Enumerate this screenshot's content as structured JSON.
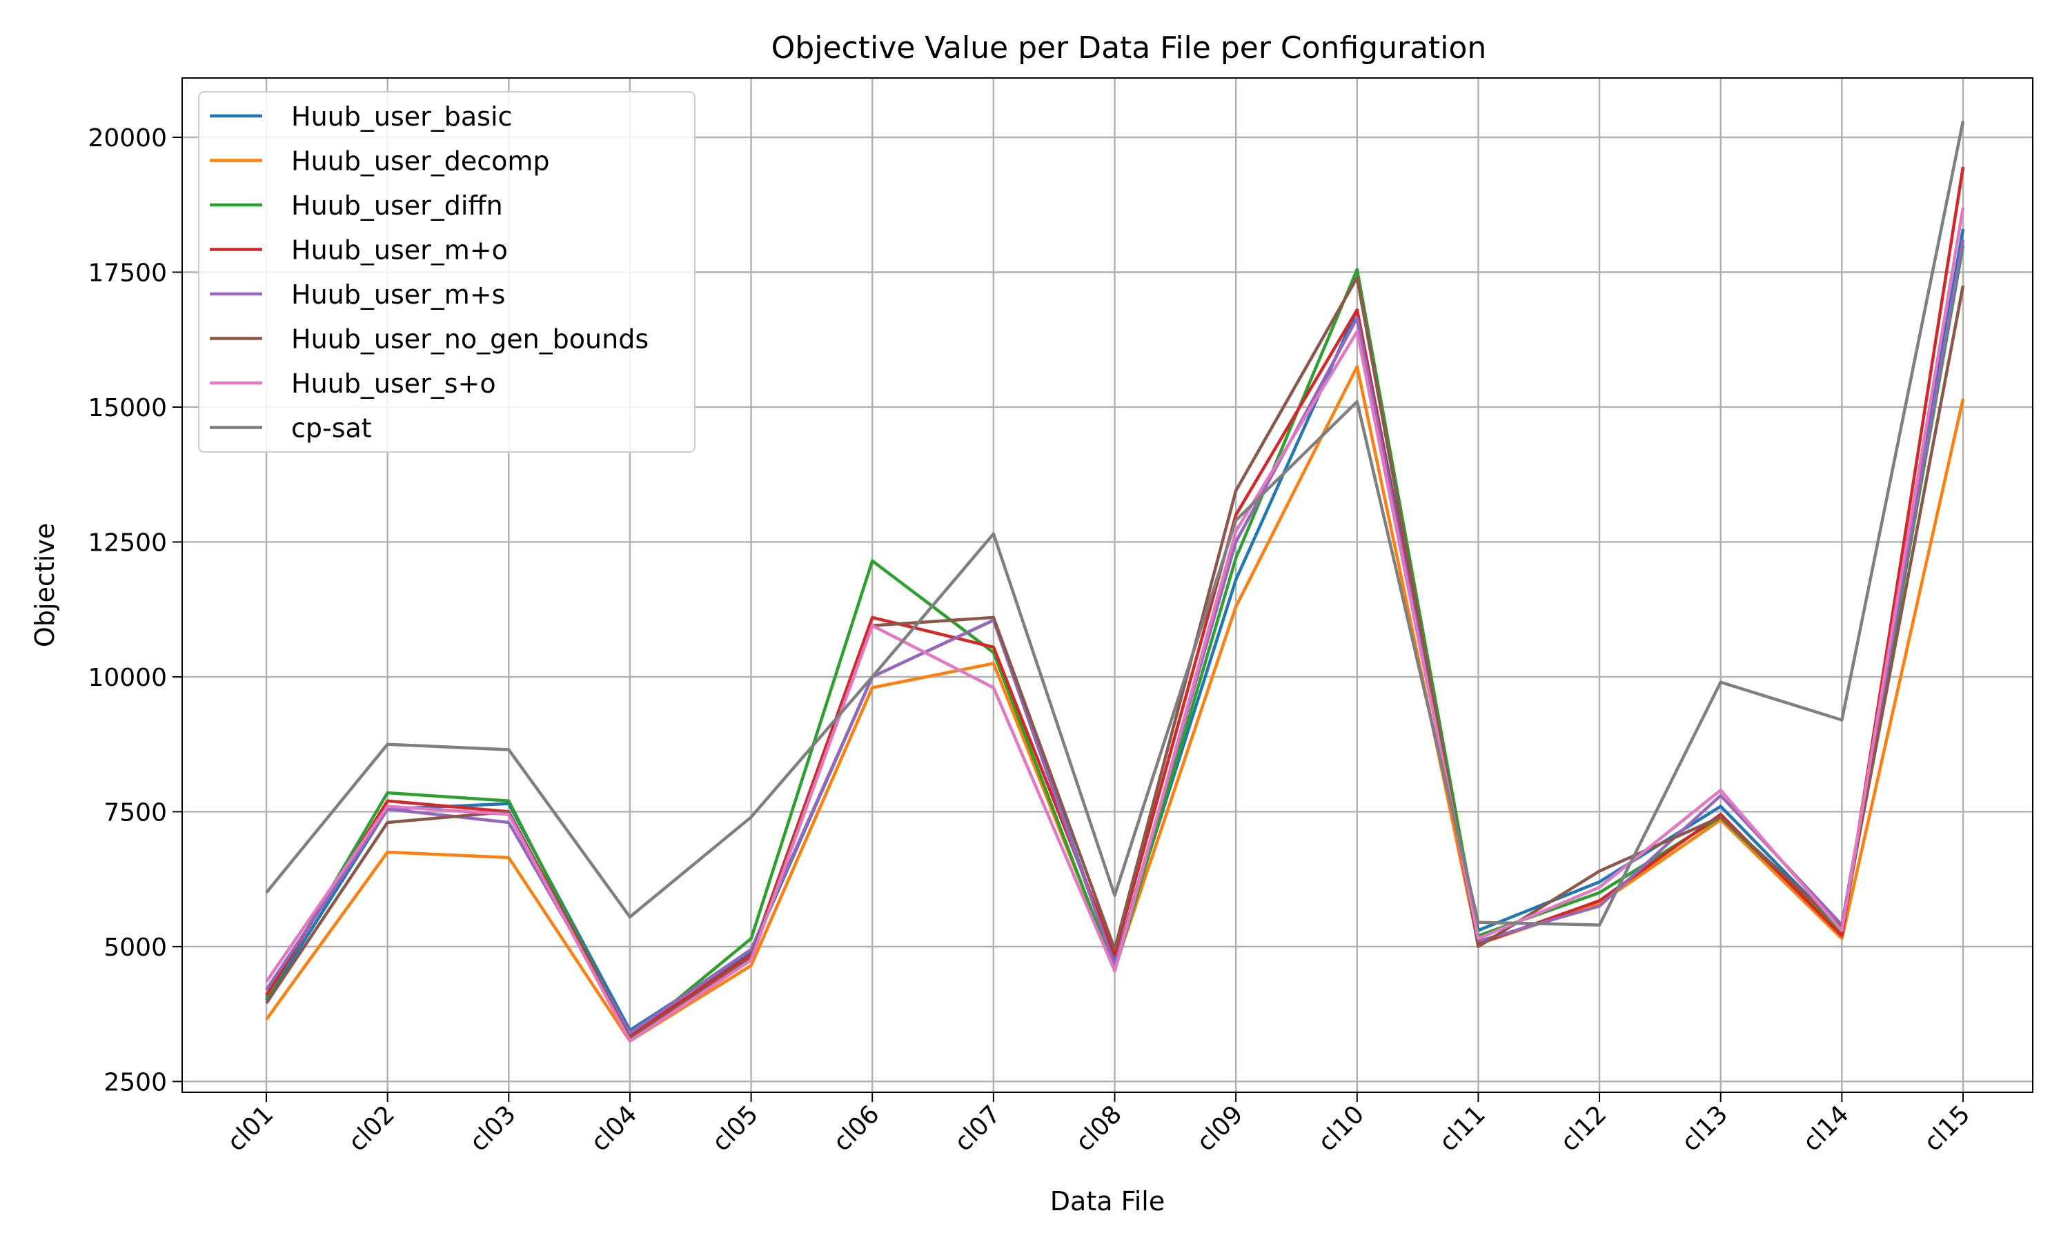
{
  "chart_data": {
    "type": "line",
    "title": "Objective Value per Data File per Configuration",
    "xlabel": "Data File",
    "ylabel": "Objective",
    "categories": [
      "cl01",
      "cl02",
      "cl03",
      "cl04",
      "cl05",
      "cl06",
      "cl07",
      "cl08",
      "cl09",
      "cl10",
      "cl11",
      "cl12",
      "cl13",
      "cl14",
      "cl15"
    ],
    "ylim": [
      2300,
      21100
    ],
    "yticks": [
      2500,
      5000,
      7500,
      10000,
      12500,
      15000,
      17500,
      20000
    ],
    "grid": true,
    "legend_position": "top-left",
    "series": [
      {
        "name": "Huub_user_basic",
        "color": "#1f77b4",
        "values": [
          4000,
          7550,
          7650,
          3450,
          4900,
          10000,
          11050,
          4700,
          11800,
          16800,
          5300,
          6200,
          7600,
          5300,
          18300
        ]
      },
      {
        "name": "Huub_user_decomp",
        "color": "#ff7f0e",
        "values": [
          3650,
          6750,
          6650,
          3250,
          4650,
          9800,
          10250,
          4600,
          11300,
          15750,
          5050,
          5800,
          7350,
          5150,
          15150
        ]
      },
      {
        "name": "Huub_user_diffn",
        "color": "#2ca02c",
        "values": [
          4050,
          7850,
          7700,
          3300,
          5150,
          12150,
          10450,
          4550,
          12200,
          17550,
          5200,
          6000,
          7400,
          5250,
          18000
        ]
      },
      {
        "name": "Huub_user_m+o",
        "color": "#d62728",
        "values": [
          4100,
          7700,
          7500,
          3350,
          4850,
          11100,
          10550,
          4850,
          13000,
          16800,
          5050,
          5850,
          7450,
          5200,
          19450
        ]
      },
      {
        "name": "Huub_user_m+s",
        "color": "#9467bd",
        "values": [
          4200,
          7550,
          7300,
          3400,
          4950,
          10000,
          11050,
          4650,
          12500,
          16650,
          5100,
          5750,
          7800,
          5400,
          18100
        ]
      },
      {
        "name": "Huub_user_no_gen_bounds",
        "color": "#8c564b",
        "values": [
          3950,
          7300,
          7500,
          3300,
          4800,
          10950,
          11100,
          4950,
          13450,
          17400,
          5000,
          6400,
          7400,
          5350,
          17250
        ]
      },
      {
        "name": "Huub_user_s+o",
        "color": "#e377c2",
        "values": [
          4350,
          7600,
          7450,
          3250,
          4750,
          10950,
          9800,
          4550,
          12700,
          16400,
          5150,
          6100,
          7900,
          5300,
          18700
        ]
      },
      {
        "name": "cp-sat",
        "color": "#7f7f7f",
        "values": [
          6000,
          8750,
          8650,
          5550,
          7400,
          10000,
          12650,
          5950,
          12900,
          15100,
          5450,
          5400,
          9900,
          9200,
          20300
        ]
      }
    ]
  }
}
